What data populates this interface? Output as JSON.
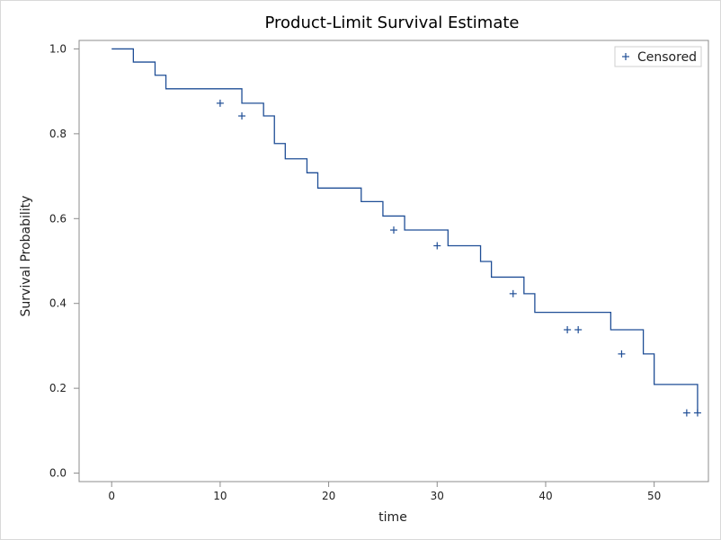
{
  "chart_data": {
    "type": "line",
    "title": "Product-Limit Survival Estimate",
    "xlabel": "time",
    "ylabel": "Survival Probability",
    "xlim": [
      -3,
      55
    ],
    "ylim": [
      -0.02,
      1.02
    ],
    "x_ticks": [
      0,
      10,
      20,
      30,
      40,
      50
    ],
    "y_ticks": [
      0.0,
      0.2,
      0.4,
      0.6,
      0.8,
      1.0
    ],
    "x_tick_labels": [
      "0",
      "10",
      "20",
      "30",
      "40",
      "50"
    ],
    "y_tick_labels": [
      "0.0",
      "0.2",
      "0.4",
      "0.6",
      "0.8",
      "1.0"
    ],
    "grid": false,
    "legend": {
      "position": "top-right",
      "entries": [
        "Censored"
      ]
    },
    "line_color": "#1f4e96",
    "series": [
      {
        "name": "Survival",
        "step": true,
        "points": [
          [
            0,
            1.0
          ],
          [
            2,
            0.969
          ],
          [
            4,
            0.938
          ],
          [
            5,
            0.906
          ],
          [
            10,
            0.906
          ],
          [
            12,
            0.872
          ],
          [
            14,
            0.842
          ],
          [
            15,
            0.777
          ],
          [
            16,
            0.741
          ],
          [
            18,
            0.708
          ],
          [
            19,
            0.672
          ],
          [
            23,
            0.64
          ],
          [
            25,
            0.606
          ],
          [
            27,
            0.573
          ],
          [
            31,
            0.536
          ],
          [
            34,
            0.499
          ],
          [
            35,
            0.462
          ],
          [
            38,
            0.423
          ],
          [
            39,
            0.379
          ],
          [
            46,
            0.338
          ],
          [
            49,
            0.281
          ],
          [
            50,
            0.209
          ],
          [
            54,
            0.142
          ]
        ]
      },
      {
        "name": "Censored",
        "marker": "+",
        "points": [
          [
            10,
            0.872
          ],
          [
            12,
            0.842
          ],
          [
            26,
            0.573
          ],
          [
            30,
            0.536
          ],
          [
            37,
            0.423
          ],
          [
            42,
            0.338
          ],
          [
            43,
            0.338
          ],
          [
            47,
            0.281
          ],
          [
            53,
            0.142
          ],
          [
            54,
            0.142
          ]
        ]
      }
    ]
  }
}
